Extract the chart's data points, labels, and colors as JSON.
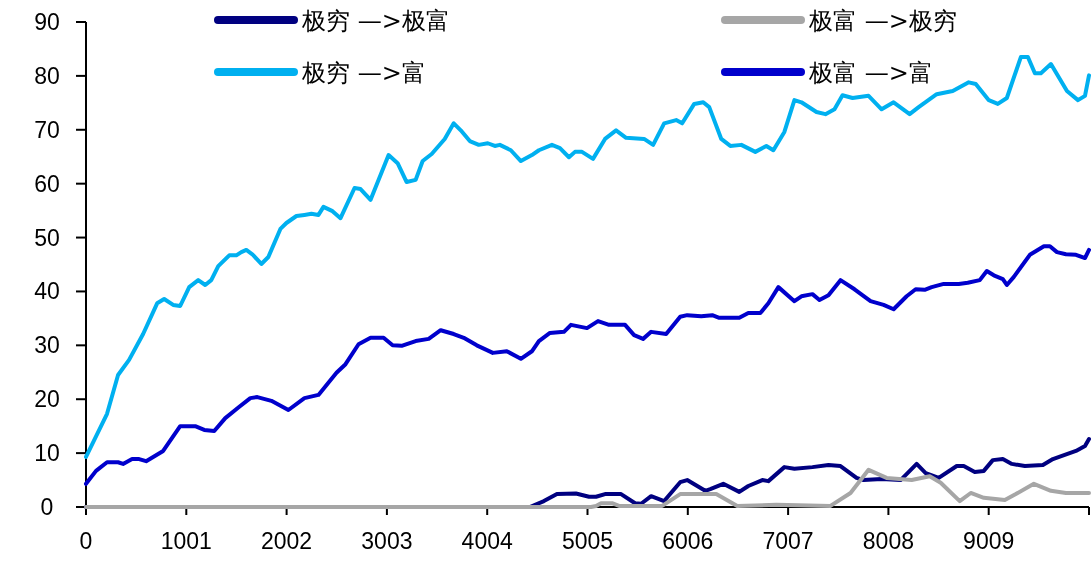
{
  "chart_data": {
    "type": "line",
    "xlim": [
      0,
      10010
    ],
    "xticks": [
      0,
      1001,
      2002,
      3003,
      4004,
      5005,
      6006,
      7007,
      8008,
      9009,
      {
        "value": 10010,
        "label": null
      }
    ],
    "ylim": [
      0,
      90
    ],
    "yticks": [
      0,
      10,
      20,
      30,
      40,
      50,
      60,
      70,
      80,
      90
    ],
    "grid": false,
    "legend": "top",
    "marker": "none",
    "line_style": "solid",
    "series": [
      {
        "name": "极穷 —>极富",
        "color": "#000080",
        "x": [
          0,
          4430,
          4570,
          4700,
          4890,
          5020,
          5090,
          5180,
          5340,
          5480,
          5540,
          5640,
          5770,
          5930,
          6000,
          6180,
          6230,
          6360,
          6520,
          6610,
          6750,
          6810,
          6970,
          7070,
          7250,
          7410,
          7530,
          7690,
          7760,
          7940,
          8130,
          8290,
          8380,
          8510,
          8690,
          8760,
          8870,
          8960,
          9050,
          9150,
          9240,
          9370,
          9550,
          9650,
          9740,
          9880,
          9970,
          10010
        ],
        "values": [
          0,
          0,
          1.1,
          2.4,
          2.5,
          1.9,
          1.9,
          2.4,
          2.4,
          0.7,
          0.6,
          2.0,
          1.1,
          4.6,
          5.0,
          3.0,
          3.3,
          4.3,
          2.8,
          3.9,
          5.0,
          4.8,
          7.4,
          7.1,
          7.4,
          7.8,
          7.6,
          5.4,
          5.0,
          5.2,
          5.0,
          8.0,
          6.3,
          5.4,
          7.6,
          7.6,
          6.5,
          6.7,
          8.7,
          8.9,
          8.0,
          7.6,
          7.8,
          8.9,
          9.5,
          10.4,
          11.3,
          12.6
        ]
      },
      {
        "name": "极富 —>极穷",
        "color": "#a6a6a6",
        "x": [
          0,
          5040,
          5090,
          5140,
          5250,
          5320,
          5750,
          5930,
          6290,
          6500,
          6890,
          7430,
          7630,
          7810,
          7990,
          8240,
          8420,
          8530,
          8720,
          8830,
          8960,
          9170,
          9280,
          9460,
          9630,
          9780,
          10010
        ],
        "values": [
          0,
          0,
          0.2,
          0.7,
          0.7,
          0.2,
          0.2,
          2.4,
          2.4,
          0.2,
          0.4,
          0.2,
          2.6,
          6.9,
          5.4,
          5.0,
          5.7,
          4.5,
          1.1,
          2.6,
          1.7,
          1.3,
          2.4,
          4.3,
          3.0,
          2.6,
          2.6
        ]
      },
      {
        "name": "极穷 —>富",
        "color": "#00b0f0",
        "x": [
          0,
          210,
          320,
          430,
          570,
          710,
          780,
          870,
          940,
          1030,
          1120,
          1190,
          1250,
          1320,
          1430,
          1500,
          1550,
          1600,
          1660,
          1750,
          1820,
          1940,
          2000,
          2100,
          2180,
          2250,
          2320,
          2370,
          2460,
          2540,
          2680,
          2740,
          2840,
          3020,
          3110,
          3200,
          3290,
          3360,
          3450,
          3580,
          3670,
          3740,
          3830,
          3920,
          4010,
          4080,
          4130,
          4240,
          4340,
          4450,
          4520,
          4650,
          4730,
          4820,
          4880,
          4950,
          5060,
          5180,
          5290,
          5390,
          5570,
          5660,
          5770,
          5890,
          5950,
          6070,
          6160,
          6220,
          6340,
          6430,
          6540,
          6680,
          6790,
          6860,
          6970,
          7070,
          7140,
          7290,
          7380,
          7470,
          7550,
          7650,
          7810,
          7940,
          8060,
          8220,
          8310,
          8490,
          8650,
          8810,
          8880,
          9010,
          9100,
          9190,
          9330,
          9400,
          9470,
          9530,
          9630,
          9790,
          9900,
          9970,
          10010
        ],
        "values": [
          9.3,
          17.3,
          24.5,
          27.3,
          32.1,
          37.8,
          38.6,
          37.5,
          37.3,
          40.8,
          42.1,
          41.2,
          42.1,
          44.7,
          46.7,
          46.7,
          47.3,
          47.7,
          46.9,
          45.1,
          46.4,
          51.6,
          52.7,
          54.0,
          54.2,
          54.4,
          54.2,
          55.7,
          54.9,
          53.6,
          59.2,
          59.0,
          57.0,
          65.3,
          63.8,
          60.3,
          60.7,
          64.2,
          65.5,
          68.3,
          71.2,
          69.9,
          67.9,
          67.2,
          67.5,
          67.0,
          67.2,
          66.2,
          64.2,
          65.3,
          66.2,
          67.2,
          66.6,
          64.9,
          65.9,
          65.9,
          64.6,
          68.3,
          69.9,
          68.5,
          68.3,
          67.2,
          71.2,
          71.8,
          71.2,
          74.8,
          75.1,
          74.2,
          68.3,
          67.0,
          67.2,
          65.9,
          67.0,
          66.2,
          69.6,
          75.5,
          75.1,
          73.3,
          72.9,
          73.8,
          76.4,
          75.9,
          76.3,
          73.8,
          75.1,
          72.9,
          74.2,
          76.6,
          77.2,
          78.8,
          78.5,
          75.5,
          74.8,
          75.9,
          83.5,
          83.5,
          80.5,
          80.5,
          82.2,
          77.2,
          75.5,
          76.3,
          80.1
        ]
      },
      {
        "name": "极富 —>富",
        "color": "#0000cc",
        "x": [
          0,
          100,
          210,
          320,
          370,
          460,
          530,
          600,
          770,
          940,
          1090,
          1180,
          1280,
          1390,
          1530,
          1640,
          1710,
          1850,
          2020,
          2180,
          2320,
          2500,
          2590,
          2720,
          2840,
          2970,
          3060,
          3150,
          3290,
          3420,
          3540,
          3670,
          3770,
          3900,
          4060,
          4200,
          4340,
          4450,
          4520,
          4630,
          4770,
          4840,
          5000,
          5110,
          5220,
          5380,
          5470,
          5560,
          5640,
          5790,
          5930,
          6000,
          6140,
          6250,
          6320,
          6520,
          6610,
          6730,
          6810,
          6910,
          7070,
          7140,
          7250,
          7320,
          7410,
          7530,
          7670,
          7830,
          7960,
          8060,
          8190,
          8280,
          8370,
          8440,
          8560,
          8710,
          8800,
          8920,
          8990,
          9060,
          9150,
          9190,
          9260,
          9420,
          9560,
          9620,
          9690,
          9780,
          9880,
          9970,
          10010
        ],
        "values": [
          4.3,
          6.7,
          8.3,
          8.3,
          8.0,
          8.9,
          8.9,
          8.5,
          10.4,
          15.0,
          15.0,
          14.3,
          14.1,
          16.5,
          18.6,
          20.2,
          20.4,
          19.7,
          18.0,
          20.2,
          20.8,
          24.9,
          26.5,
          30.2,
          31.4,
          31.4,
          30.0,
          29.9,
          30.8,
          31.2,
          32.8,
          32.1,
          31.4,
          30.0,
          28.6,
          28.9,
          27.5,
          28.9,
          30.8,
          32.3,
          32.5,
          33.8,
          33.2,
          34.5,
          33.8,
          33.8,
          31.9,
          31.2,
          32.5,
          32.1,
          35.3,
          35.6,
          35.4,
          35.6,
          35.1,
          35.1,
          36.0,
          36.0,
          37.8,
          40.8,
          38.2,
          39.1,
          39.5,
          38.4,
          39.3,
          42.1,
          40.4,
          38.2,
          37.5,
          36.7,
          39.1,
          40.4,
          40.3,
          40.8,
          41.4,
          41.4,
          41.6,
          42.1,
          43.8,
          43.0,
          42.3,
          41.2,
          42.7,
          46.8,
          48.4,
          48.4,
          47.3,
          46.9,
          46.8,
          46.2,
          47.7
        ]
      }
    ]
  }
}
